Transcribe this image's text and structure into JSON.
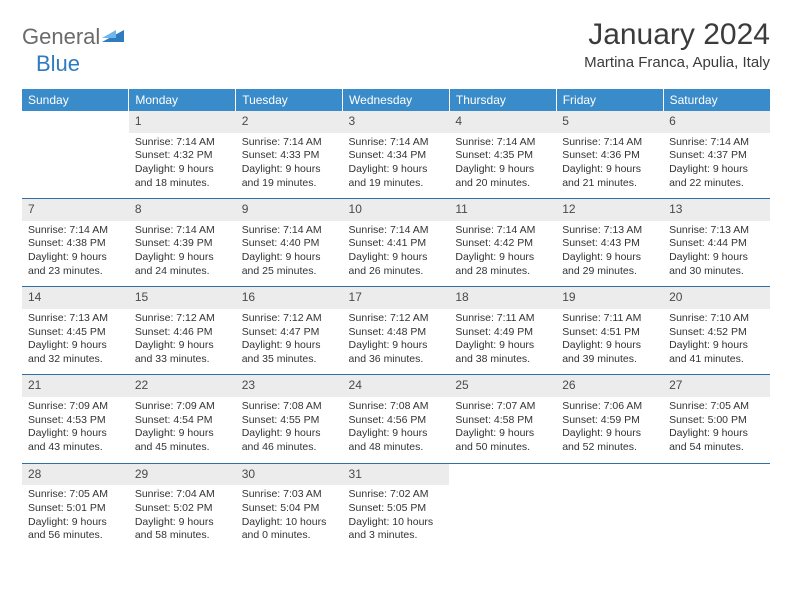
{
  "brand": {
    "word1": "General",
    "word2": "Blue"
  },
  "title": "January 2024",
  "location": "Martina Franca, Apulia, Italy",
  "colors": {
    "header_bg": "#3a8bc9",
    "header_text": "#ffffff",
    "daynum_bg": "#ececec",
    "row_divider": "#2f6fa3",
    "logo_gray": "#6b6b6b",
    "logo_blue": "#2f7bbf"
  },
  "day_headers": [
    "Sunday",
    "Monday",
    "Tuesday",
    "Wednesday",
    "Thursday",
    "Friday",
    "Saturday"
  ],
  "weeks": [
    {
      "days": [
        {
          "num": "",
          "empty": true
        },
        {
          "num": "1",
          "sunrise": "Sunrise: 7:14 AM",
          "sunset": "Sunset: 4:32 PM",
          "daylight1": "Daylight: 9 hours",
          "daylight2": "and 18 minutes."
        },
        {
          "num": "2",
          "sunrise": "Sunrise: 7:14 AM",
          "sunset": "Sunset: 4:33 PM",
          "daylight1": "Daylight: 9 hours",
          "daylight2": "and 19 minutes."
        },
        {
          "num": "3",
          "sunrise": "Sunrise: 7:14 AM",
          "sunset": "Sunset: 4:34 PM",
          "daylight1": "Daylight: 9 hours",
          "daylight2": "and 19 minutes."
        },
        {
          "num": "4",
          "sunrise": "Sunrise: 7:14 AM",
          "sunset": "Sunset: 4:35 PM",
          "daylight1": "Daylight: 9 hours",
          "daylight2": "and 20 minutes."
        },
        {
          "num": "5",
          "sunrise": "Sunrise: 7:14 AM",
          "sunset": "Sunset: 4:36 PM",
          "daylight1": "Daylight: 9 hours",
          "daylight2": "and 21 minutes."
        },
        {
          "num": "6",
          "sunrise": "Sunrise: 7:14 AM",
          "sunset": "Sunset: 4:37 PM",
          "daylight1": "Daylight: 9 hours",
          "daylight2": "and 22 minutes."
        }
      ]
    },
    {
      "days": [
        {
          "num": "7",
          "sunrise": "Sunrise: 7:14 AM",
          "sunset": "Sunset: 4:38 PM",
          "daylight1": "Daylight: 9 hours",
          "daylight2": "and 23 minutes."
        },
        {
          "num": "8",
          "sunrise": "Sunrise: 7:14 AM",
          "sunset": "Sunset: 4:39 PM",
          "daylight1": "Daylight: 9 hours",
          "daylight2": "and 24 minutes."
        },
        {
          "num": "9",
          "sunrise": "Sunrise: 7:14 AM",
          "sunset": "Sunset: 4:40 PM",
          "daylight1": "Daylight: 9 hours",
          "daylight2": "and 25 minutes."
        },
        {
          "num": "10",
          "sunrise": "Sunrise: 7:14 AM",
          "sunset": "Sunset: 4:41 PM",
          "daylight1": "Daylight: 9 hours",
          "daylight2": "and 26 minutes."
        },
        {
          "num": "11",
          "sunrise": "Sunrise: 7:14 AM",
          "sunset": "Sunset: 4:42 PM",
          "daylight1": "Daylight: 9 hours",
          "daylight2": "and 28 minutes."
        },
        {
          "num": "12",
          "sunrise": "Sunrise: 7:13 AM",
          "sunset": "Sunset: 4:43 PM",
          "daylight1": "Daylight: 9 hours",
          "daylight2": "and 29 minutes."
        },
        {
          "num": "13",
          "sunrise": "Sunrise: 7:13 AM",
          "sunset": "Sunset: 4:44 PM",
          "daylight1": "Daylight: 9 hours",
          "daylight2": "and 30 minutes."
        }
      ]
    },
    {
      "days": [
        {
          "num": "14",
          "sunrise": "Sunrise: 7:13 AM",
          "sunset": "Sunset: 4:45 PM",
          "daylight1": "Daylight: 9 hours",
          "daylight2": "and 32 minutes."
        },
        {
          "num": "15",
          "sunrise": "Sunrise: 7:12 AM",
          "sunset": "Sunset: 4:46 PM",
          "daylight1": "Daylight: 9 hours",
          "daylight2": "and 33 minutes."
        },
        {
          "num": "16",
          "sunrise": "Sunrise: 7:12 AM",
          "sunset": "Sunset: 4:47 PM",
          "daylight1": "Daylight: 9 hours",
          "daylight2": "and 35 minutes."
        },
        {
          "num": "17",
          "sunrise": "Sunrise: 7:12 AM",
          "sunset": "Sunset: 4:48 PM",
          "daylight1": "Daylight: 9 hours",
          "daylight2": "and 36 minutes."
        },
        {
          "num": "18",
          "sunrise": "Sunrise: 7:11 AM",
          "sunset": "Sunset: 4:49 PM",
          "daylight1": "Daylight: 9 hours",
          "daylight2": "and 38 minutes."
        },
        {
          "num": "19",
          "sunrise": "Sunrise: 7:11 AM",
          "sunset": "Sunset: 4:51 PM",
          "daylight1": "Daylight: 9 hours",
          "daylight2": "and 39 minutes."
        },
        {
          "num": "20",
          "sunrise": "Sunrise: 7:10 AM",
          "sunset": "Sunset: 4:52 PM",
          "daylight1": "Daylight: 9 hours",
          "daylight2": "and 41 minutes."
        }
      ]
    },
    {
      "days": [
        {
          "num": "21",
          "sunrise": "Sunrise: 7:09 AM",
          "sunset": "Sunset: 4:53 PM",
          "daylight1": "Daylight: 9 hours",
          "daylight2": "and 43 minutes."
        },
        {
          "num": "22",
          "sunrise": "Sunrise: 7:09 AM",
          "sunset": "Sunset: 4:54 PM",
          "daylight1": "Daylight: 9 hours",
          "daylight2": "and 45 minutes."
        },
        {
          "num": "23",
          "sunrise": "Sunrise: 7:08 AM",
          "sunset": "Sunset: 4:55 PM",
          "daylight1": "Daylight: 9 hours",
          "daylight2": "and 46 minutes."
        },
        {
          "num": "24",
          "sunrise": "Sunrise: 7:08 AM",
          "sunset": "Sunset: 4:56 PM",
          "daylight1": "Daylight: 9 hours",
          "daylight2": "and 48 minutes."
        },
        {
          "num": "25",
          "sunrise": "Sunrise: 7:07 AM",
          "sunset": "Sunset: 4:58 PM",
          "daylight1": "Daylight: 9 hours",
          "daylight2": "and 50 minutes."
        },
        {
          "num": "26",
          "sunrise": "Sunrise: 7:06 AM",
          "sunset": "Sunset: 4:59 PM",
          "daylight1": "Daylight: 9 hours",
          "daylight2": "and 52 minutes."
        },
        {
          "num": "27",
          "sunrise": "Sunrise: 7:05 AM",
          "sunset": "Sunset: 5:00 PM",
          "daylight1": "Daylight: 9 hours",
          "daylight2": "and 54 minutes."
        }
      ]
    },
    {
      "days": [
        {
          "num": "28",
          "sunrise": "Sunrise: 7:05 AM",
          "sunset": "Sunset: 5:01 PM",
          "daylight1": "Daylight: 9 hours",
          "daylight2": "and 56 minutes."
        },
        {
          "num": "29",
          "sunrise": "Sunrise: 7:04 AM",
          "sunset": "Sunset: 5:02 PM",
          "daylight1": "Daylight: 9 hours",
          "daylight2": "and 58 minutes."
        },
        {
          "num": "30",
          "sunrise": "Sunrise: 7:03 AM",
          "sunset": "Sunset: 5:04 PM",
          "daylight1": "Daylight: 10 hours",
          "daylight2": "and 0 minutes."
        },
        {
          "num": "31",
          "sunrise": "Sunrise: 7:02 AM",
          "sunset": "Sunset: 5:05 PM",
          "daylight1": "Daylight: 10 hours",
          "daylight2": "and 3 minutes."
        },
        {
          "num": "",
          "empty": true
        },
        {
          "num": "",
          "empty": true
        },
        {
          "num": "",
          "empty": true
        }
      ]
    }
  ]
}
